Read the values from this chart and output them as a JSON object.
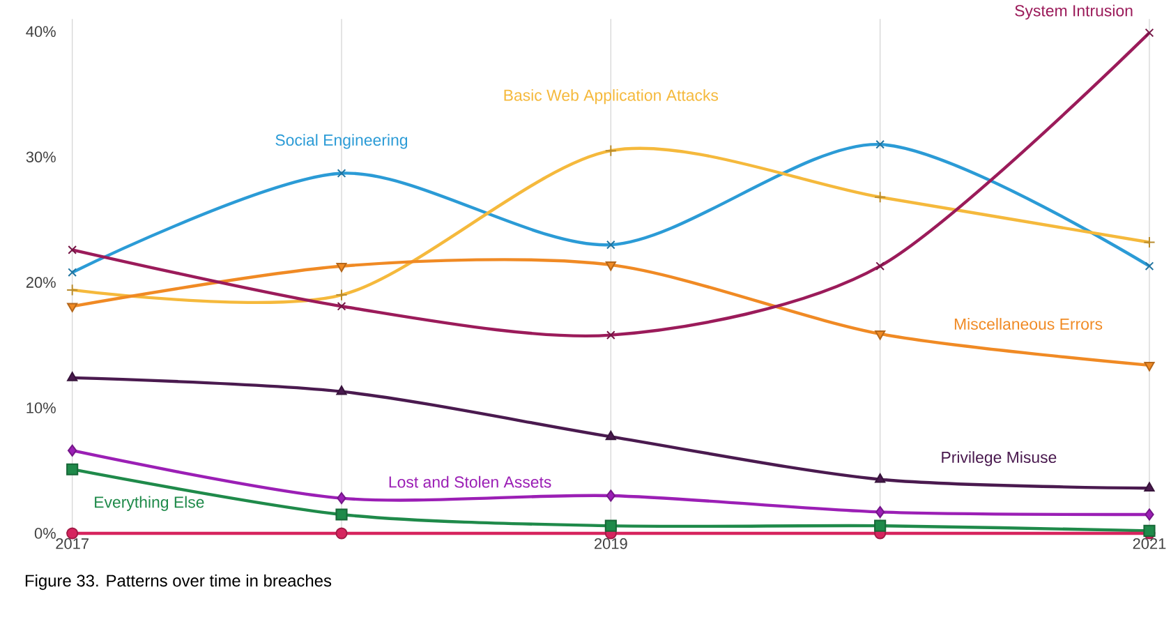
{
  "chart_data": {
    "type": "line",
    "title": "Figure 33. Patterns over time in breaches",
    "x": [
      2017,
      2018,
      2019,
      2020,
      2021
    ],
    "xlim": [
      2017,
      2021
    ],
    "xticks": [
      2017,
      {
        "value": 2018,
        "label": null
      },
      2019,
      {
        "value": 2020,
        "label": null
      },
      2021
    ],
    "ylim": [
      0,
      41
    ],
    "yticks": [
      {
        "value": 0,
        "label": "0%"
      },
      {
        "value": 10,
        "label": "10%"
      },
      {
        "value": 20,
        "label": "20%"
      },
      {
        "value": 30,
        "label": "30%"
      },
      {
        "value": 40,
        "label": "40%"
      }
    ],
    "grid": "x",
    "line_style": "solid",
    "series": [
      {
        "name": "Social Engineering",
        "color": "#2b9bd6",
        "marker": "cross",
        "values": [
          20.8,
          28.7,
          23.0,
          31.0,
          21.3
        ]
      },
      {
        "name": "Basic Web Application Attacks",
        "color": "#f5b93c",
        "marker": "plus",
        "values": [
          19.4,
          19.0,
          30.5,
          26.8,
          23.2
        ]
      },
      {
        "name": "Miscellaneous Errors",
        "color": "#f08a24",
        "marker": "triangle-down",
        "values": [
          18.1,
          21.3,
          21.4,
          15.9,
          13.4
        ]
      },
      {
        "name": "System Intrusion",
        "color": "#9b1b5a",
        "marker": "cross",
        "values": [
          22.6,
          18.1,
          15.8,
          21.3,
          39.9
        ]
      },
      {
        "name": "Privilege Misuse",
        "color": "#4a1a4f",
        "marker": "triangle",
        "values": [
          12.4,
          11.3,
          7.7,
          4.3,
          3.6
        ]
      },
      {
        "name": "Lost and Stolen Assets",
        "color": "#9b1fb5",
        "marker": "diamond",
        "values": [
          6.6,
          2.8,
          3.0,
          1.7,
          1.5
        ]
      },
      {
        "name": "Everything Else",
        "color": "#1f8a4a",
        "marker": "square",
        "values": [
          5.1,
          1.5,
          0.6,
          0.6,
          0.2
        ]
      },
      {
        "color": "#d6245e",
        "marker": "circle",
        "values": [
          0,
          0,
          0,
          0,
          0
        ]
      }
    ]
  }
}
